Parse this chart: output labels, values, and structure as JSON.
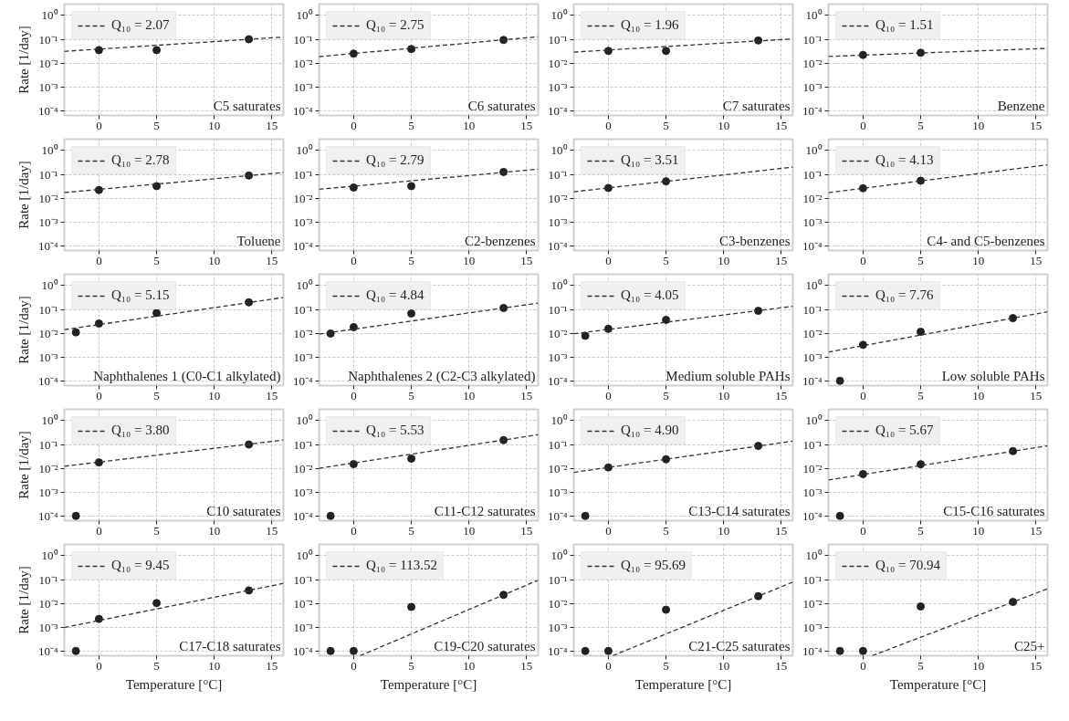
{
  "chart_data": [
    {
      "type": "scatter",
      "xlim": [
        -3,
        16
      ],
      "ylim": [
        6.3e-05,
        3
      ],
      "xticks": [
        0,
        5,
        10,
        15
      ],
      "yticks": [
        {
          "value": 0.0001,
          "label": "10⁻⁴"
        },
        {
          "value": 0.001,
          "label": "10⁻³"
        },
        {
          "value": 0.01,
          "label": "10⁻²"
        },
        {
          "value": 0.1,
          "label": "10⁻¹"
        },
        {
          "value": 1,
          "label": "10⁰"
        }
      ],
      "log": true,
      "grid": true,
      "legend": "top left",
      "ylabel": "Rate [1/day]",
      "annotations": [
        "C5 saturates"
      ],
      "series": [
        {
          "color": "#222222",
          "marker": "circle",
          "x": [
            0,
            5,
            13
          ],
          "values": [
            0.035,
            0.035,
            0.1
          ]
        },
        {
          "type": "line",
          "name": "Q₁₀ = 2.07",
          "color": "#333333",
          "line_style": "dashed",
          "x": [
            -3,
            16
          ],
          "values": [
            0.031,
            0.124
          ]
        }
      ]
    },
    {
      "type": "scatter",
      "xlim": [
        -3,
        16
      ],
      "ylim": [
        6.3e-05,
        3
      ],
      "xticks": [
        0,
        5,
        10,
        15
      ],
      "yticks": [
        {
          "value": 0.0001,
          "label": "10⁻⁴"
        },
        {
          "value": 0.001,
          "label": "10⁻³"
        },
        {
          "value": 0.01,
          "label": "10⁻²"
        },
        {
          "value": 0.1,
          "label": "10⁻¹"
        },
        {
          "value": 1,
          "label": "10⁰"
        }
      ],
      "log": true,
      "grid": true,
      "legend": "top left",
      "annotations": [
        "C6 saturates"
      ],
      "series": [
        {
          "color": "#222222",
          "marker": "circle",
          "x": [
            0,
            5,
            13
          ],
          "values": [
            0.025,
            0.039,
            0.094
          ]
        },
        {
          "type": "line",
          "name": "Q₁₀ = 2.75",
          "color": "#333333",
          "line_style": "dashed",
          "x": [
            -3,
            16
          ],
          "values": [
            0.0187,
            0.128
          ]
        }
      ]
    },
    {
      "type": "scatter",
      "xlim": [
        -3,
        16
      ],
      "ylim": [
        6.3e-05,
        3
      ],
      "xticks": [
        0,
        5,
        10,
        15
      ],
      "yticks": [
        {
          "value": 0.0001,
          "label": "10⁻⁴"
        },
        {
          "value": 0.001,
          "label": "10⁻³"
        },
        {
          "value": 0.01,
          "label": "10⁻²"
        },
        {
          "value": 0.1,
          "label": "10⁻¹"
        },
        {
          "value": 1,
          "label": "10⁰"
        }
      ],
      "log": true,
      "grid": true,
      "legend": "top left",
      "annotations": [
        "C7 saturates"
      ],
      "series": [
        {
          "color": "#222222",
          "marker": "circle",
          "x": [
            0,
            5,
            13
          ],
          "values": [
            0.0325,
            0.0325,
            0.089
          ]
        },
        {
          "type": "line",
          "name": "Q₁₀ = 1.96",
          "color": "#333333",
          "line_style": "dashed",
          "x": [
            -3,
            16
          ],
          "values": [
            0.029,
            0.104
          ]
        }
      ]
    },
    {
      "type": "scatter",
      "xlim": [
        -3,
        16
      ],
      "ylim": [
        6.3e-05,
        3
      ],
      "xticks": [
        0,
        5,
        10,
        15
      ],
      "yticks": [
        {
          "value": 0.0001,
          "label": "10⁻⁴"
        },
        {
          "value": 0.001,
          "label": "10⁻³"
        },
        {
          "value": 0.01,
          "label": "10⁻²"
        },
        {
          "value": 0.1,
          "label": "10⁻¹"
        },
        {
          "value": 1,
          "label": "10⁰"
        }
      ],
      "log": true,
      "grid": true,
      "legend": "top left",
      "annotations": [
        "Benzene"
      ],
      "series": [
        {
          "color": "#222222",
          "marker": "circle",
          "x": [
            0,
            5
          ],
          "values": [
            0.022,
            0.027
          ]
        },
        {
          "type": "line",
          "name": "Q₁₀ = 1.51",
          "color": "#333333",
          "line_style": "dashed",
          "x": [
            -3,
            16
          ],
          "values": [
            0.019,
            0.0416
          ]
        }
      ]
    },
    {
      "type": "scatter",
      "xlim": [
        -3,
        16
      ],
      "ylim": [
        6.3e-05,
        3
      ],
      "xticks": [
        0,
        5,
        10,
        15
      ],
      "yticks": [
        {
          "value": 0.0001,
          "label": "10⁻⁴"
        },
        {
          "value": 0.001,
          "label": "10⁻³"
        },
        {
          "value": 0.01,
          "label": "10⁻²"
        },
        {
          "value": 0.1,
          "label": "10⁻¹"
        },
        {
          "value": 1,
          "label": "10⁰"
        }
      ],
      "log": true,
      "grid": true,
      "legend": "top left",
      "ylabel": "Rate [1/day]",
      "annotations": [
        "Toluene"
      ],
      "series": [
        {
          "color": "#222222",
          "marker": "circle",
          "x": [
            0,
            5,
            13
          ],
          "values": [
            0.022,
            0.032,
            0.089
          ]
        },
        {
          "type": "line",
          "name": "Q₁₀ = 2.78",
          "color": "#333333",
          "line_style": "dashed",
          "x": [
            -3,
            16
          ],
          "values": [
            0.0172,
            0.12
          ]
        }
      ]
    },
    {
      "type": "scatter",
      "xlim": [
        -3,
        16
      ],
      "ylim": [
        6.3e-05,
        3
      ],
      "xticks": [
        0,
        5,
        10,
        15
      ],
      "yticks": [
        {
          "value": 0.0001,
          "label": "10⁻⁴"
        },
        {
          "value": 0.001,
          "label": "10⁻³"
        },
        {
          "value": 0.01,
          "label": "10⁻²"
        },
        {
          "value": 0.1,
          "label": "10⁻¹"
        },
        {
          "value": 1,
          "label": "10⁰"
        }
      ],
      "log": true,
      "grid": true,
      "legend": "top left",
      "annotations": [
        "C2-benzenes"
      ],
      "series": [
        {
          "color": "#222222",
          "marker": "circle",
          "x": [
            0,
            5,
            13
          ],
          "values": [
            0.028,
            0.032,
            0.126
          ]
        },
        {
          "type": "line",
          "name": "Q₁₀ = 2.79",
          "color": "#333333",
          "line_style": "dashed",
          "x": [
            -3,
            16
          ],
          "values": [
            0.0235,
            0.165
          ]
        }
      ]
    },
    {
      "type": "scatter",
      "xlim": [
        -3,
        16
      ],
      "ylim": [
        6.3e-05,
        3
      ],
      "xticks": [
        0,
        5,
        10,
        15
      ],
      "yticks": [
        {
          "value": 0.0001,
          "label": "10⁻⁴"
        },
        {
          "value": 0.001,
          "label": "10⁻³"
        },
        {
          "value": 0.01,
          "label": "10⁻²"
        },
        {
          "value": 0.1,
          "label": "10⁻¹"
        },
        {
          "value": 1,
          "label": "10⁰"
        }
      ],
      "log": true,
      "grid": true,
      "legend": "top left",
      "annotations": [
        "C3-benzenes"
      ],
      "series": [
        {
          "color": "#222222",
          "marker": "circle",
          "x": [
            0,
            5
          ],
          "values": [
            0.0267,
            0.051
          ]
        },
        {
          "type": "line",
          "name": "Q₁₀ = 3.51",
          "color": "#333333",
          "line_style": "dashed",
          "x": [
            -3,
            16
          ],
          "values": [
            0.0185,
            0.201
          ]
        }
      ]
    },
    {
      "type": "scatter",
      "xlim": [
        -3,
        16
      ],
      "ylim": [
        6.3e-05,
        3
      ],
      "xticks": [
        0,
        5,
        10,
        15
      ],
      "yticks": [
        {
          "value": 0.0001,
          "label": "10⁻⁴"
        },
        {
          "value": 0.001,
          "label": "10⁻³"
        },
        {
          "value": 0.01,
          "label": "10⁻²"
        },
        {
          "value": 0.1,
          "label": "10⁻¹"
        },
        {
          "value": 1,
          "label": "10⁰"
        }
      ],
      "log": true,
      "grid": true,
      "legend": "top left",
      "annotations": [
        "C4- and C5-benzenes"
      ],
      "series": [
        {
          "color": "#222222",
          "marker": "circle",
          "x": [
            0,
            5
          ],
          "values": [
            0.026,
            0.054
          ]
        },
        {
          "type": "line",
          "name": "Q₁₀ = 4.13",
          "color": "#333333",
          "line_style": "dashed",
          "x": [
            -3,
            16
          ],
          "values": [
            0.017,
            0.252
          ]
        }
      ]
    },
    {
      "type": "scatter",
      "xlim": [
        -3,
        16
      ],
      "ylim": [
        6.3e-05,
        3
      ],
      "xticks": [
        0,
        5,
        10,
        15
      ],
      "yticks": [
        {
          "value": 0.0001,
          "label": "10⁻⁴"
        },
        {
          "value": 0.001,
          "label": "10⁻³"
        },
        {
          "value": 0.01,
          "label": "10⁻²"
        },
        {
          "value": 0.1,
          "label": "10⁻¹"
        },
        {
          "value": 1,
          "label": "10⁰"
        }
      ],
      "log": true,
      "grid": true,
      "legend": "top left",
      "ylabel": "Rate [1/day]",
      "annotations": [
        "Naphthalenes 1 (C0-C1 alkylated)"
      ],
      "series": [
        {
          "color": "#222222",
          "marker": "circle",
          "x": [
            -2,
            0,
            5,
            13
          ],
          "values": [
            0.0109,
            0.0255,
            0.071,
            0.198
          ]
        },
        {
          "type": "line",
          "name": "Q₁₀ = 5.15",
          "color": "#333333",
          "line_style": "dashed",
          "x": [
            -3,
            16
          ],
          "values": [
            0.0141,
            0.317
          ]
        }
      ]
    },
    {
      "type": "scatter",
      "xlim": [
        -3,
        16
      ],
      "ylim": [
        6.3e-05,
        3
      ],
      "xticks": [
        0,
        5,
        10,
        15
      ],
      "yticks": [
        {
          "value": 0.0001,
          "label": "10⁻⁴"
        },
        {
          "value": 0.001,
          "label": "10⁻³"
        },
        {
          "value": 0.01,
          "label": "10⁻²"
        },
        {
          "value": 0.1,
          "label": "10⁻¹"
        },
        {
          "value": 1,
          "label": "10⁰"
        }
      ],
      "log": true,
      "grid": true,
      "legend": "top left",
      "annotations": [
        "Naphthalenes 2 (C2-C3 alkylated)"
      ],
      "series": [
        {
          "color": "#222222",
          "marker": "circle",
          "x": [
            -2,
            0,
            5,
            13
          ],
          "values": [
            0.0097,
            0.018,
            0.067,
            0.115
          ]
        },
        {
          "type": "line",
          "name": "Q₁₀ = 4.84",
          "color": "#333333",
          "line_style": "dashed",
          "x": [
            -3,
            16
          ],
          "values": [
            0.0092,
            0.184
          ]
        }
      ]
    },
    {
      "type": "scatter",
      "xlim": [
        -3,
        16
      ],
      "ylim": [
        6.3e-05,
        3
      ],
      "xticks": [
        0,
        5,
        10,
        15
      ],
      "yticks": [
        {
          "value": 0.0001,
          "label": "10⁻⁴"
        },
        {
          "value": 0.001,
          "label": "10⁻³"
        },
        {
          "value": 0.01,
          "label": "10⁻²"
        },
        {
          "value": 0.1,
          "label": "10⁻¹"
        },
        {
          "value": 1,
          "label": "10⁰"
        }
      ],
      "log": true,
      "grid": true,
      "legend": "top left",
      "annotations": [
        "Medium soluble PAHs"
      ],
      "series": [
        {
          "color": "#222222",
          "marker": "circle",
          "x": [
            -2,
            0,
            5,
            13
          ],
          "values": [
            0.0078,
            0.0152,
            0.0364,
            0.087
          ]
        },
        {
          "type": "line",
          "name": "Q₁₀ = 4.05",
          "color": "#333333",
          "line_style": "dashed",
          "x": [
            -3,
            16
          ],
          "values": [
            0.0095,
            0.135
          ]
        }
      ]
    },
    {
      "type": "scatter",
      "xlim": [
        -3,
        16
      ],
      "ylim": [
        6.3e-05,
        3
      ],
      "xticks": [
        0,
        5,
        10,
        15
      ],
      "yticks": [
        {
          "value": 0.0001,
          "label": "10⁻⁴"
        },
        {
          "value": 0.001,
          "label": "10⁻³"
        },
        {
          "value": 0.01,
          "label": "10⁻²"
        },
        {
          "value": 0.1,
          "label": "10⁻¹"
        },
        {
          "value": 1,
          "label": "10⁰"
        }
      ],
      "log": true,
      "grid": true,
      "legend": "top left",
      "annotations": [
        "Low soluble PAHs"
      ],
      "series": [
        {
          "color": "#222222",
          "marker": "circle",
          "x": [
            -2,
            0,
            5,
            13
          ],
          "values": [
            0.0001,
            0.00325,
            0.0115,
            0.043
          ]
        },
        {
          "type": "line",
          "name": "Q₁₀ = 7.76",
          "color": "#333333",
          "line_style": "dashed",
          "x": [
            -3,
            16
          ],
          "values": [
            0.00162,
            0.0796
          ]
        }
      ]
    },
    {
      "type": "scatter",
      "xlim": [
        -3,
        16
      ],
      "ylim": [
        6.3e-05,
        3
      ],
      "xticks": [
        0,
        5,
        10,
        15
      ],
      "yticks": [
        {
          "value": 0.0001,
          "label": "10⁻⁴"
        },
        {
          "value": 0.001,
          "label": "10⁻³"
        },
        {
          "value": 0.01,
          "label": "10⁻²"
        },
        {
          "value": 0.1,
          "label": "10⁻¹"
        },
        {
          "value": 1,
          "label": "10⁰"
        }
      ],
      "log": true,
      "grid": true,
      "legend": "top left",
      "ylabel": "Rate [1/day]",
      "annotations": [
        "C10 saturates"
      ],
      "series": [
        {
          "color": "#222222",
          "marker": "circle",
          "x": [
            -2,
            0,
            13
          ],
          "values": [
            0.0001,
            0.0177,
            0.1
          ]
        },
        {
          "type": "line",
          "name": "Q₁₀ = 3.80",
          "color": "#333333",
          "line_style": "dashed",
          "x": [
            -3,
            16
          ],
          "values": [
            0.0122,
            0.154
          ]
        }
      ]
    },
    {
      "type": "scatter",
      "xlim": [
        -3,
        16
      ],
      "ylim": [
        6.3e-05,
        3
      ],
      "xticks": [
        0,
        5,
        10,
        15
      ],
      "yticks": [
        {
          "value": 0.0001,
          "label": "10⁻⁴"
        },
        {
          "value": 0.001,
          "label": "10⁻³"
        },
        {
          "value": 0.01,
          "label": "10⁻²"
        },
        {
          "value": 0.1,
          "label": "10⁻¹"
        },
        {
          "value": 1,
          "label": "10⁰"
        }
      ],
      "log": true,
      "grid": true,
      "legend": "top left",
      "annotations": [
        "C11-C12 saturates"
      ],
      "series": [
        {
          "color": "#222222",
          "marker": "circle",
          "x": [
            -2,
            0,
            5,
            13
          ],
          "values": [
            0.0001,
            0.0149,
            0.0255,
            0.153
          ]
        },
        {
          "type": "line",
          "name": "Q₁₀ = 5.53",
          "color": "#333333",
          "line_style": "dashed",
          "x": [
            -3,
            16
          ],
          "values": [
            0.01,
            0.258
          ]
        }
      ]
    },
    {
      "type": "scatter",
      "xlim": [
        -3,
        16
      ],
      "ylim": [
        6.3e-05,
        3
      ],
      "xticks": [
        0,
        5,
        10,
        15
      ],
      "yticks": [
        {
          "value": 0.0001,
          "label": "10⁻⁴"
        },
        {
          "value": 0.001,
          "label": "10⁻³"
        },
        {
          "value": 0.01,
          "label": "10⁻²"
        },
        {
          "value": 0.1,
          "label": "10⁻¹"
        },
        {
          "value": 1,
          "label": "10⁰"
        }
      ],
      "log": true,
      "grid": true,
      "legend": "top left",
      "annotations": [
        "C13-C14 saturates"
      ],
      "series": [
        {
          "color": "#222222",
          "marker": "circle",
          "x": [
            -2,
            0,
            5,
            13
          ],
          "values": [
            0.0001,
            0.0109,
            0.0239,
            0.087
          ]
        },
        {
          "type": "line",
          "name": "Q₁₀ = 4.90",
          "color": "#333333",
          "line_style": "dashed",
          "x": [
            -3,
            16
          ],
          "values": [
            0.00675,
            0.138
          ]
        }
      ]
    },
    {
      "type": "scatter",
      "xlim": [
        -3,
        16
      ],
      "ylim": [
        6.3e-05,
        3
      ],
      "xticks": [
        0,
        5,
        10,
        15
      ],
      "yticks": [
        {
          "value": 0.0001,
          "label": "10⁻⁴"
        },
        {
          "value": 0.001,
          "label": "10⁻³"
        },
        {
          "value": 0.01,
          "label": "10⁻²"
        },
        {
          "value": 0.1,
          "label": "10⁻¹"
        },
        {
          "value": 1,
          "label": "10⁰"
        }
      ],
      "log": true,
      "grid": true,
      "legend": "top left",
      "annotations": [
        "C15-C16 saturates"
      ],
      "series": [
        {
          "color": "#222222",
          "marker": "circle",
          "x": [
            -2,
            0,
            5,
            13
          ],
          "values": [
            0.0001,
            0.0057,
            0.0148,
            0.0525
          ]
        },
        {
          "type": "line",
          "name": "Q₁₀ = 5.67",
          "color": "#333333",
          "line_style": "dashed",
          "x": [
            -3,
            16
          ],
          "values": [
            0.00325,
            0.0879
          ]
        }
      ]
    },
    {
      "type": "scatter",
      "xlim": [
        -3,
        16
      ],
      "ylim": [
        6.3e-05,
        3
      ],
      "xticks": [
        0,
        5,
        10,
        15
      ],
      "yticks": [
        {
          "value": 0.0001,
          "label": "10⁻⁴"
        },
        {
          "value": 0.001,
          "label": "10⁻³"
        },
        {
          "value": 0.01,
          "label": "10⁻²"
        },
        {
          "value": 0.1,
          "label": "10⁻¹"
        },
        {
          "value": 1,
          "label": "10⁰"
        }
      ],
      "log": true,
      "grid": true,
      "legend": "top left",
      "ylabel": "Rate [1/day]",
      "xlabel": "Temperature [°C]",
      "annotations": [
        "C17-C18 saturates"
      ],
      "series": [
        {
          "color": "#222222",
          "marker": "circle",
          "x": [
            -2,
            0,
            5,
            13
          ],
          "values": [
            0.0001,
            0.00222,
            0.0103,
            0.035
          ]
        },
        {
          "type": "line",
          "name": "Q₁₀ = 9.45",
          "color": "#333333",
          "line_style": "dashed",
          "x": [
            -3,
            16
          ],
          "values": [
            0.00097,
            0.069
          ]
        }
      ]
    },
    {
      "type": "scatter",
      "xlim": [
        -3,
        16
      ],
      "ylim": [
        6.3e-05,
        3
      ],
      "xticks": [
        0,
        5,
        10,
        15
      ],
      "yticks": [
        {
          "value": 0.0001,
          "label": "10⁻⁴"
        },
        {
          "value": 0.001,
          "label": "10⁻³"
        },
        {
          "value": 0.01,
          "label": "10⁻²"
        },
        {
          "value": 0.1,
          "label": "10⁻¹"
        },
        {
          "value": 1,
          "label": "10⁰"
        }
      ],
      "log": true,
      "grid": true,
      "legend": "top left",
      "xlabel": "Temperature [°C]",
      "annotations": [
        "C19-C20 saturates"
      ],
      "series": [
        {
          "color": "#222222",
          "marker": "circle",
          "x": [
            -2,
            0,
            5,
            13
          ],
          "values": [
            0.0001,
            0.0001,
            0.0071,
            0.0228
          ]
        },
        {
          "type": "line",
          "name": "Q₁₀ = 113.52",
          "color": "#333333",
          "line_style": "dashed",
          "x": [
            0.55,
            16
          ],
          "values": [
            6.3e-05,
            0.094
          ]
        }
      ]
    },
    {
      "type": "scatter",
      "xlim": [
        -3,
        16
      ],
      "ylim": [
        6.3e-05,
        3
      ],
      "xticks": [
        0,
        5,
        10,
        15
      ],
      "yticks": [
        {
          "value": 0.0001,
          "label": "10⁻⁴"
        },
        {
          "value": 0.001,
          "label": "10⁻³"
        },
        {
          "value": 0.01,
          "label": "10⁻²"
        },
        {
          "value": 0.1,
          "label": "10⁻¹"
        },
        {
          "value": 1,
          "label": "10⁰"
        }
      ],
      "log": true,
      "grid": true,
      "legend": "top left",
      "xlabel": "Temperature [°C]",
      "annotations": [
        "C21-C25 saturates"
      ],
      "series": [
        {
          "color": "#222222",
          "marker": "circle",
          "x": [
            -2,
            0,
            5,
            13
          ],
          "values": [
            0.0001,
            0.0001,
            0.0054,
            0.02
          ]
        },
        {
          "type": "line",
          "name": "Q₁₀ = 95.69",
          "color": "#333333",
          "line_style": "dashed",
          "x": [
            0.38,
            16
          ],
          "values": [
            6.3e-05,
            0.0785
          ]
        }
      ]
    },
    {
      "type": "scatter",
      "xlim": [
        -3,
        16
      ],
      "ylim": [
        6.3e-05,
        3
      ],
      "xticks": [
        0,
        5,
        10,
        15
      ],
      "yticks": [
        {
          "value": 0.0001,
          "label": "10⁻⁴"
        },
        {
          "value": 0.001,
          "label": "10⁻³"
        },
        {
          "value": 0.01,
          "label": "10⁻²"
        },
        {
          "value": 0.1,
          "label": "10⁻¹"
        },
        {
          "value": 1,
          "label": "10⁰"
        }
      ],
      "log": true,
      "grid": true,
      "legend": "top left",
      "xlabel": "Temperature [°C]",
      "annotations": [
        "C25+"
      ],
      "series": [
        {
          "color": "#222222",
          "marker": "circle",
          "x": [
            -2,
            0,
            5,
            13
          ],
          "values": [
            0.0001,
            0.0001,
            0.0074,
            0.0115
          ]
        },
        {
          "type": "line",
          "name": "Q₁₀ = 70.94",
          "color": "#333333",
          "line_style": "dashed",
          "x": [
            0.79,
            16
          ],
          "values": [
            6.3e-05,
            0.041
          ]
        }
      ]
    }
  ]
}
